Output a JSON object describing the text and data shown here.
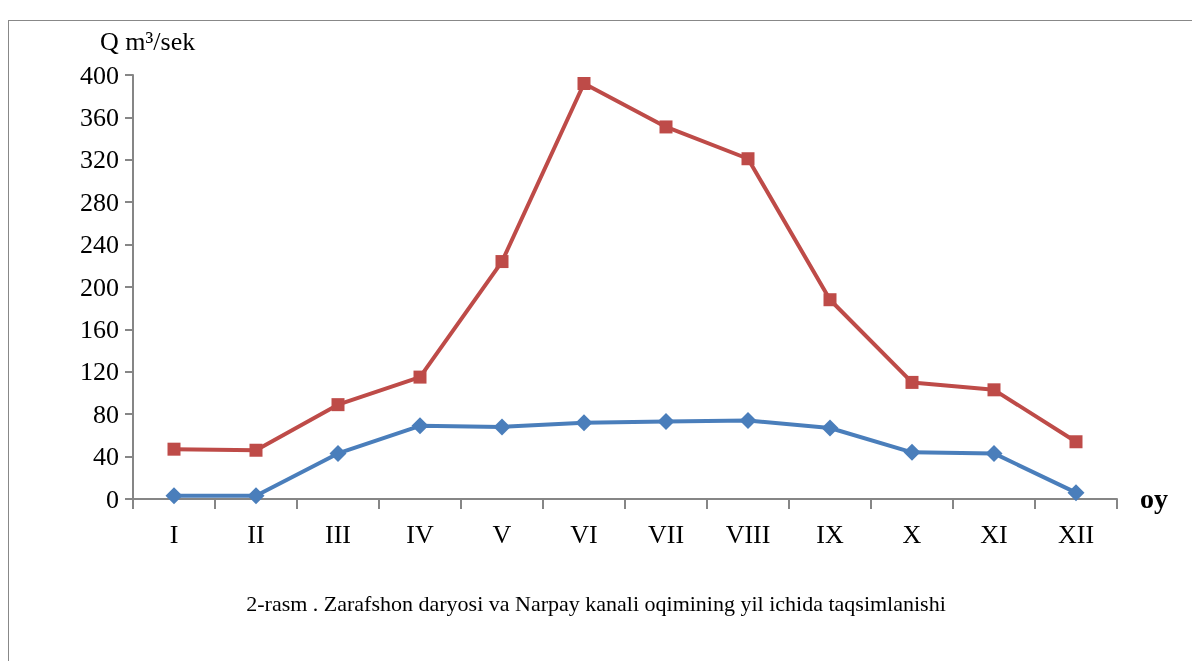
{
  "chart_data": {
    "type": "line",
    "title": "2-rasm . Zarafshon daryosi va Narpay kanali oqimining yil ichida taqsimlanishi",
    "ylabel": "Q m³/sek",
    "xlabel": "oy",
    "categories": [
      "I",
      "II",
      "III",
      "IV",
      "V",
      "VI",
      "VII",
      "VIII",
      "IX",
      "X",
      "XI",
      "XII"
    ],
    "series": [
      {
        "color": "#4a7ebb",
        "marker": "diamond",
        "values": [
          3,
          3,
          43,
          69,
          68,
          72,
          73,
          74,
          67,
          44,
          43,
          6
        ]
      },
      {
        "color": "#be4b48",
        "marker": "square",
        "values": [
          47,
          46,
          89,
          115,
          224,
          392,
          351,
          321,
          188,
          110,
          103,
          54
        ]
      }
    ],
    "ylim": [
      0,
      400
    ],
    "yticks": [
      0,
      40,
      80,
      120,
      160,
      200,
      240,
      280,
      320,
      360,
      400
    ],
    "line_style": "solid"
  }
}
